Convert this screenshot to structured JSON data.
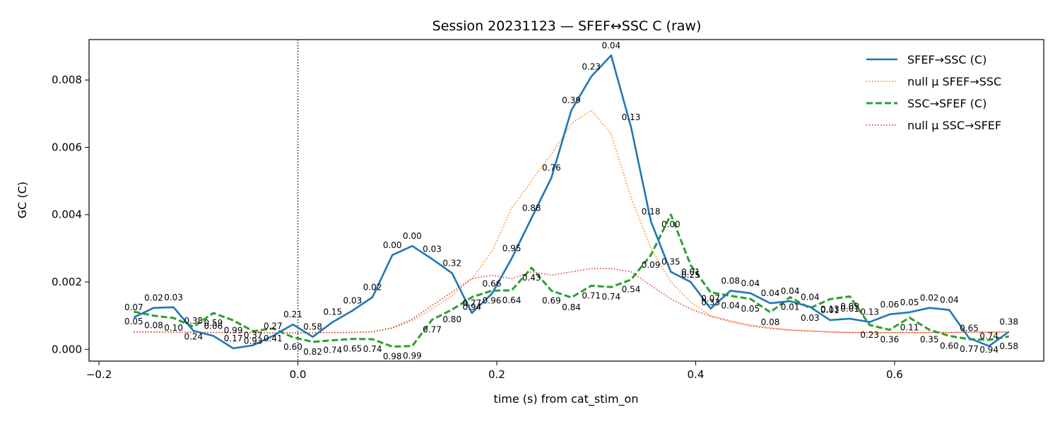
{
  "chart_data": {
    "type": "line",
    "title": "Session 20231123 — SFEF↔SSC C (raw)",
    "xlabel": "time (s) from cat_stim_on",
    "ylabel": "GC (C)",
    "xlim": [
      -0.21,
      0.75
    ],
    "ylim": [
      -0.00035,
      0.0092
    ],
    "xticks": [
      -0.2,
      0.0,
      0.2,
      0.4,
      0.6
    ],
    "xtick_labels": [
      "−0.2",
      "0.0",
      "0.2",
      "0.4",
      "0.6"
    ],
    "yticks": [
      0.0,
      0.002,
      0.004,
      0.006,
      0.008
    ],
    "ytick_labels": [
      "0.000",
      "0.002",
      "0.004",
      "0.006",
      "0.008"
    ],
    "vline_x": 0.0,
    "legend_position": "top-right",
    "x": [
      -0.165,
      -0.145,
      -0.125,
      -0.105,
      -0.085,
      -0.065,
      -0.045,
      -0.025,
      -0.005,
      0.015,
      0.035,
      0.055,
      0.075,
      0.095,
      0.115,
      0.135,
      0.155,
      0.175,
      0.195,
      0.215,
      0.235,
      0.255,
      0.275,
      0.295,
      0.315,
      0.335,
      0.355,
      0.375,
      0.395,
      0.415,
      0.435,
      0.455,
      0.475,
      0.495,
      0.515,
      0.535,
      0.555,
      0.575,
      0.595,
      0.615,
      0.635,
      0.655,
      0.675,
      0.695,
      0.715
    ],
    "series": [
      {
        "name": "SFEF→SSC (C)",
        "color": "#1f77b4",
        "style": "solid",
        "values": [
          0.00095,
          0.00123,
          0.00125,
          0.00055,
          0.0004,
          3e-05,
          0.00012,
          0.0004,
          0.00074,
          0.00037,
          0.00081,
          0.00115,
          0.00155,
          0.0028,
          0.00307,
          0.00268,
          0.00226,
          0.00108,
          0.00165,
          0.0027,
          0.0039,
          0.0051,
          0.0071,
          0.0081,
          0.00873,
          0.0066,
          0.0038,
          0.0023,
          0.002,
          0.00121,
          0.00174,
          0.00167,
          0.00137,
          0.00143,
          0.00126,
          0.00087,
          0.00091,
          0.00081,
          0.00104,
          0.0011,
          0.00123,
          0.00117,
          0.00033,
          0.0001,
          0.00052
        ],
        "labels": [
          "0.07",
          "0.02",
          "0.03",
          "0.38",
          "0.06",
          "0.17",
          "0.37",
          "0.27",
          "0.21",
          "0.58",
          "0.15",
          "0.03",
          "0.02",
          "0.00",
          "0.00",
          "0.03",
          "0.32",
          "0.77",
          "0.66",
          "0.95",
          "0.88",
          "0.76",
          "0.39",
          "0.23",
          "0.04",
          "0.13",
          "0.18",
          "0.35",
          "0.01",
          "0.07",
          "0.08",
          "0.04",
          "0.04",
          "0.04",
          "0.04",
          "0.01",
          "0.01",
          "0.13",
          "0.06",
          "0.05",
          "0.02",
          "0.04",
          "0.65",
          "0.74",
          "0.38"
        ]
      },
      {
        "name": "null μ SFEF→SSC",
        "color": "#ff7f0e",
        "style": "dotted",
        "values": [
          0.00052,
          0.00052,
          0.00051,
          0.00051,
          0.0005,
          0.0005,
          0.0005,
          0.00049,
          0.00049,
          0.00049,
          0.00049,
          0.0005,
          0.00052,
          0.00062,
          0.00085,
          0.0012,
          0.0016,
          0.0021,
          0.0029,
          0.0042,
          0.005,
          0.0058,
          0.0067,
          0.0071,
          0.0064,
          0.0045,
          0.003,
          0.002,
          0.0014,
          0.001,
          0.00085,
          0.00072,
          0.00064,
          0.00058,
          0.00055,
          0.00052,
          0.0005,
          0.00049,
          0.00049,
          0.00049,
          0.0005,
          0.0005,
          0.00051,
          0.00051,
          0.00051
        ]
      },
      {
        "name": "SSC→SFEF (C)",
        "color": "#2ca02c",
        "style": "dashed",
        "values": [
          0.00112,
          0.001,
          0.00093,
          0.00067,
          0.00108,
          0.00086,
          0.00054,
          0.00062,
          0.00036,
          0.00022,
          0.00027,
          0.00031,
          0.0003,
          8e-05,
          0.0001,
          0.00088,
          0.00118,
          0.00155,
          0.00174,
          0.00175,
          0.00242,
          0.00174,
          0.00154,
          0.00189,
          0.00185,
          0.00207,
          0.0028,
          0.004,
          0.0025,
          0.00169,
          0.00159,
          0.0015,
          0.0011,
          0.00155,
          0.00122,
          0.00149,
          0.00157,
          0.00072,
          0.00058,
          0.00094,
          0.00058,
          0.0004,
          0.0003,
          0.00028,
          0.00038
        ],
        "labels": [
          "0.05",
          "0.08",
          "0.10",
          "0.24",
          "0.59",
          "0.99",
          "0.93",
          "0.41",
          "0.60",
          "0.82",
          "0.74",
          "0.65",
          "0.74",
          "0.98",
          "0.99",
          "0.77",
          "0.80",
          "0.94",
          "0.96",
          "0.64",
          "0.43",
          "0.69",
          "0.84",
          "0.71",
          "0.74",
          "0.54",
          "0.09",
          "0.00",
          "0.25",
          "0.33",
          "0.04",
          "0.05",
          "0.08",
          "0.01",
          "0.03",
          "0.13",
          "0.09",
          "0.23",
          "0.36",
          "0.11",
          "0.35",
          "0.60",
          "0.77",
          "0.94",
          "0.58"
        ]
      },
      {
        "name": "null μ SSC→SFEF",
        "color": "#d62728",
        "style": "dotted",
        "values": [
          0.00051,
          0.00051,
          0.00051,
          0.0005,
          0.0005,
          0.0005,
          0.0005,
          0.00049,
          0.00049,
          0.00049,
          0.0005,
          0.0005,
          0.00052,
          0.00064,
          0.0009,
          0.0013,
          0.0017,
          0.0021,
          0.0022,
          0.0021,
          0.0023,
          0.0022,
          0.0023,
          0.0024,
          0.0024,
          0.0023,
          0.0019,
          0.0015,
          0.0012,
          0.00098,
          0.00082,
          0.0007,
          0.00062,
          0.00057,
          0.00054,
          0.00051,
          0.0005,
          0.0005,
          0.0005,
          0.0005,
          0.0005,
          0.0005,
          0.00051,
          0.00051,
          0.00051
        ]
      }
    ]
  }
}
